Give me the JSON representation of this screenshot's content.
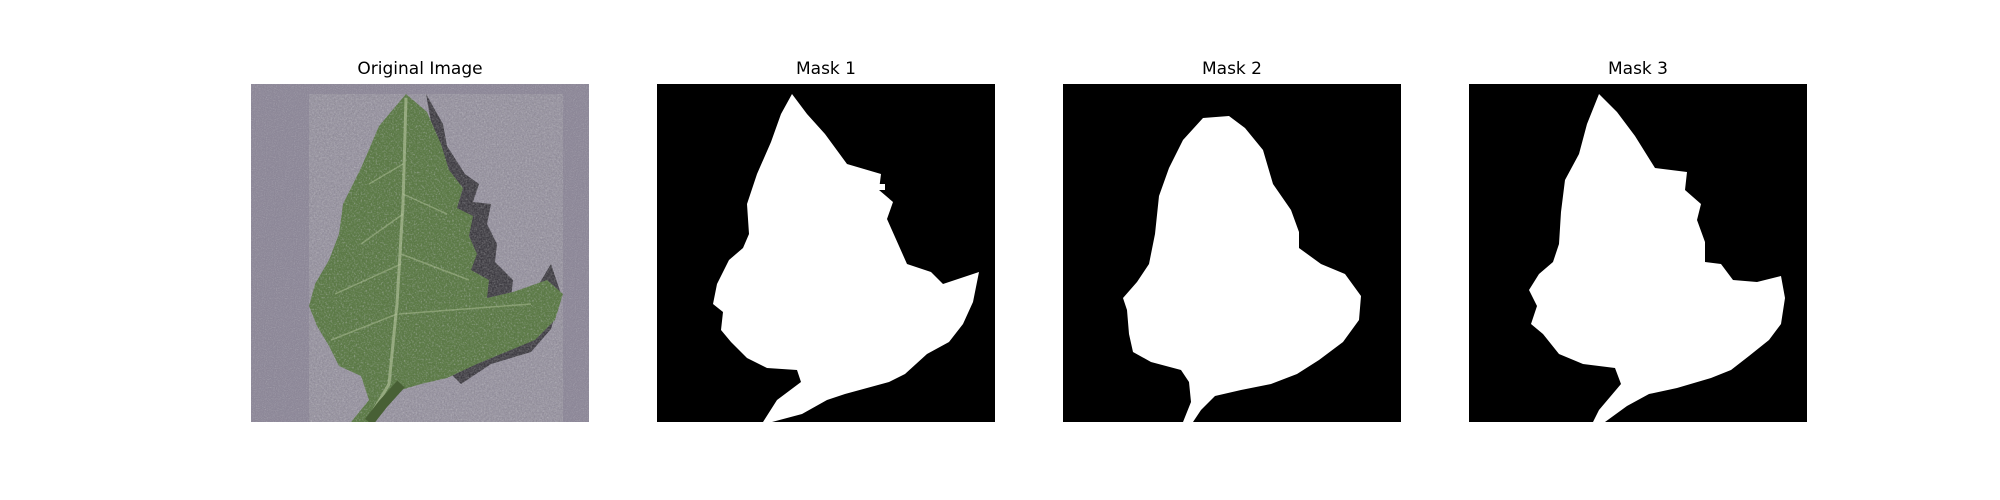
{
  "figure": {
    "panels": [
      {
        "title": "Original Image",
        "kind": "photo",
        "subject": "leaf-photo"
      },
      {
        "title": "Mask 1",
        "kind": "mask"
      },
      {
        "title": "Mask 2",
        "kind": "mask"
      },
      {
        "title": "Mask 3",
        "kind": "mask"
      }
    ],
    "colors": {
      "background": "#ffffff",
      "mask_background": "#000000",
      "mask_foreground": "#ffffff",
      "photo_background": "#8f8a9a",
      "leaf_green": "#5f7d4a",
      "leaf_dark": "#3c5530",
      "shadow": "#1e1c22"
    }
  }
}
